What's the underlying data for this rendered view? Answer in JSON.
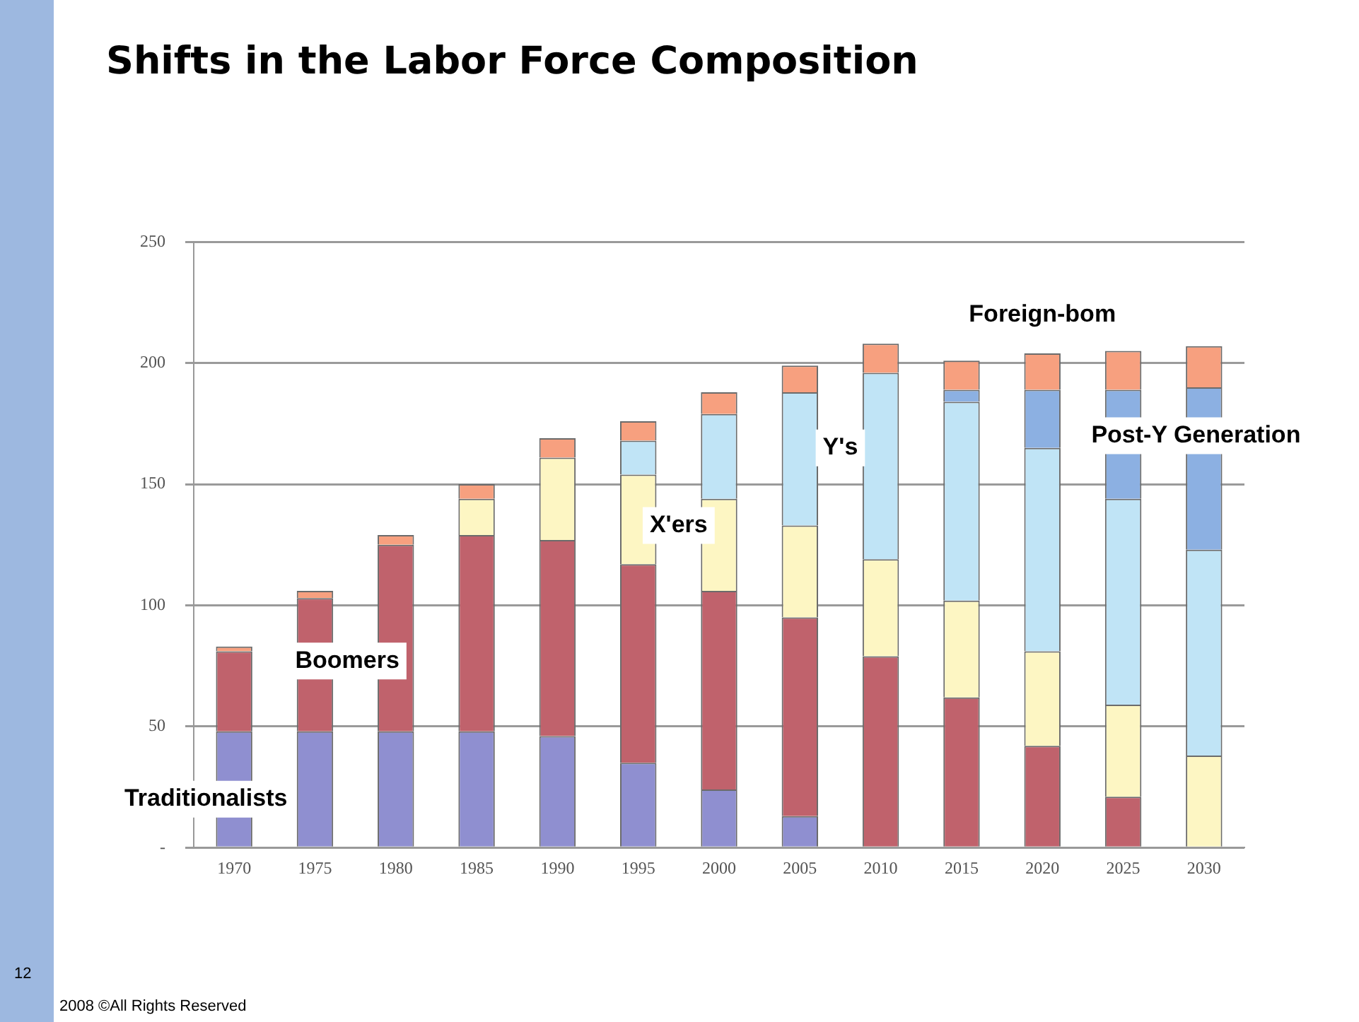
{
  "chart_data": {
    "type": "bar",
    "stacked": true,
    "title": "Shifts in the Labor Force Composition",
    "categories": [
      "1970",
      "1975",
      "1980",
      "1985",
      "1990",
      "1995",
      "2000",
      "2005",
      "2010",
      "2015",
      "2020",
      "2025",
      "2030"
    ],
    "series": [
      {
        "name": "Traditionalists",
        "color": "#8f8fd0",
        "values": [
          48,
          48,
          48,
          48,
          46,
          35,
          24,
          13,
          0,
          0,
          0,
          0,
          0
        ]
      },
      {
        "name": "Boomers",
        "color": "#c0626c",
        "values": [
          33,
          55,
          77,
          81,
          81,
          82,
          82,
          82,
          79,
          62,
          42,
          21,
          0
        ]
      },
      {
        "name": "X'ers",
        "color": "#fdf6c3",
        "values": [
          0,
          0,
          0,
          15,
          34,
          37,
          38,
          38,
          40,
          40,
          39,
          38,
          38
        ]
      },
      {
        "name": "Y's",
        "color": "#c0e4f6",
        "values": [
          0,
          0,
          0,
          0,
          0,
          14,
          35,
          55,
          77,
          82,
          84,
          85,
          85
        ]
      },
      {
        "name": "Post-Y Generation",
        "color": "#8cb0e2",
        "values": [
          0,
          0,
          0,
          0,
          0,
          0,
          0,
          0,
          0,
          5,
          24,
          45,
          67
        ]
      },
      {
        "name": "Foreign-bom",
        "color": "#f7a07f",
        "values": [
          2,
          3,
          4,
          6,
          8,
          8,
          9,
          11,
          12,
          12,
          15,
          16,
          17
        ]
      }
    ],
    "ylim": [
      0,
      250
    ],
    "yticks": [
      {
        "value": 0,
        "label": "-"
      },
      50,
      100,
      150,
      200,
      250
    ],
    "grid": "y",
    "legend": false,
    "annotations": [
      "12",
      "2008 ©All Rights Reserved"
    ]
  }
}
